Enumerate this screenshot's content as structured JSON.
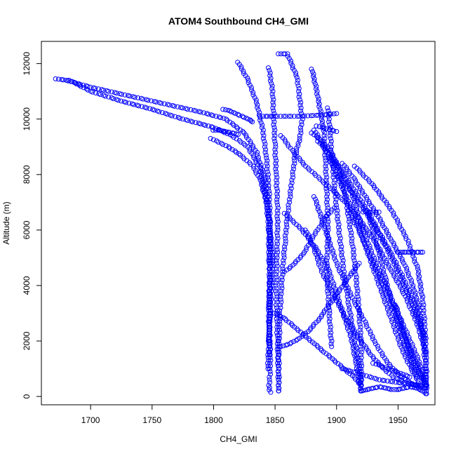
{
  "chart_data": {
    "type": "scatter",
    "title": "ATOM4 Southbound CH4_GMI",
    "xlabel": "CH4_GMI",
    "ylabel": "Altitude (m)",
    "xlim": [
      1660,
      1980
    ],
    "ylim": [
      -300,
      12800
    ],
    "x_ticks": [
      1700,
      1750,
      1800,
      1850,
      1900,
      1950
    ],
    "y_ticks": [
      0,
      2000,
      4000,
      6000,
      8000,
      10000,
      12000
    ],
    "marker": "open-circle",
    "color": "#0000ff",
    "grid": false,
    "legend": "none",
    "series": [
      {
        "x": [
          1672,
          1680,
          1700,
          1730,
          1760,
          1790,
          1810,
          1825,
          1835,
          1842,
          1845,
          1846,
          1846,
          1845,
          1845,
          1846,
          1846,
          1845,
          1846
        ],
        "y": [
          11450,
          11400,
          11150,
          10850,
          10550,
          10250,
          10000,
          9500,
          8800,
          7800,
          6500,
          5500,
          4500,
          3500,
          2500,
          1500,
          800,
          400,
          150
        ]
      },
      {
        "x": [
          1683,
          1700,
          1725,
          1750,
          1775,
          1800,
          1815,
          1828,
          1838,
          1843,
          1845,
          1845,
          1846,
          1846,
          1845
        ],
        "y": [
          11400,
          11000,
          10650,
          10350,
          10000,
          9700,
          9400,
          9000,
          8200,
          7000,
          6000,
          5000,
          4000,
          3000,
          2000
        ]
      },
      {
        "x": [
          1798,
          1812,
          1822,
          1832,
          1838,
          1843,
          1846,
          1848,
          1847,
          1846,
          1845,
          1844
        ],
        "y": [
          9300,
          9000,
          8700,
          8300,
          7800,
          7000,
          6000,
          5000,
          4000,
          3000,
          2000,
          1000
        ]
      },
      {
        "x": [
          1820,
          1828,
          1835,
          1840,
          1843,
          1845,
          1846,
          1846,
          1845,
          1846
        ],
        "y": [
          12050,
          11400,
          10600,
          9600,
          8600,
          7500,
          6200,
          4800,
          3200,
          1500
        ]
      },
      {
        "x": [
          1845,
          1848,
          1849,
          1850,
          1851,
          1852,
          1852,
          1851,
          1852,
          1853
        ],
        "y": [
          11850,
          11000,
          10000,
          9000,
          8000,
          7000,
          6000,
          4000,
          2000,
          200
        ]
      },
      {
        "x": [
          1853,
          1860,
          1868,
          1872,
          1870,
          1866,
          1863,
          1860,
          1858,
          1856,
          1854,
          1853,
          1853
        ],
        "y": [
          12350,
          12350,
          11500,
          10000,
          9300,
          8600,
          7500,
          6500,
          5500,
          4500,
          3000,
          1500,
          200
        ]
      },
      {
        "x": [
          1838,
          1850,
          1870,
          1890,
          1900
        ],
        "y": [
          10100,
          10100,
          10100,
          10150,
          10200
        ]
      },
      {
        "x": [
          1880,
          1884,
          1888,
          1890,
          1891,
          1892,
          1893,
          1892,
          1894,
          1896
        ],
        "y": [
          11800,
          11000,
          10000,
          9500,
          8500,
          7500,
          6000,
          4500,
          3000,
          1800
        ]
      },
      {
        "x": [
          1893,
          1895,
          1896,
          1898,
          1900,
          1903,
          1906,
          1910,
          1914,
          1918,
          1920
        ],
        "y": [
          10400,
          9500,
          8600,
          7800,
          6800,
          5600,
          4500,
          3300,
          2200,
          1200,
          200
        ]
      },
      {
        "x": [
          1880,
          1888,
          1896,
          1902,
          1908,
          1913,
          1917,
          1920,
          1920
        ],
        "y": [
          9500,
          9200,
          8800,
          8200,
          7000,
          5500,
          3800,
          2000,
          200
        ]
      },
      {
        "x": [
          1895,
          1905,
          1912,
          1916,
          1920,
          1925,
          1932,
          1940,
          1948,
          1956,
          1964,
          1970,
          1972
        ],
        "y": [
          8600,
          8000,
          7400,
          6800,
          6200,
          5600,
          4800,
          4000,
          3200,
          2400,
          1600,
          900,
          300
        ]
      },
      {
        "x": [
          1905,
          1915,
          1925,
          1935,
          1945,
          1955,
          1962,
          1967,
          1970,
          1972,
          1973
        ],
        "y": [
          8400,
          7800,
          7100,
          6400,
          5600,
          4800,
          4000,
          3200,
          2300,
          1200,
          100
        ]
      },
      {
        "x": [
          1915,
          1930,
          1945,
          1958,
          1966,
          1970,
          1972,
          1973,
          1973
        ],
        "y": [
          8300,
          7600,
          6700,
          5600,
          4600,
          3500,
          2400,
          1300,
          300
        ]
      },
      {
        "x": [
          1882,
          1890,
          1898,
          1906,
          1914,
          1922,
          1930,
          1938,
          1946,
          1954,
          1962,
          1968
        ],
        "y": [
          9600,
          9000,
          8200,
          7400,
          6600,
          5600,
          4600,
          3600,
          2600,
          1600,
          900,
          400
        ]
      },
      {
        "x": [
          1858,
          1872,
          1884,
          1894,
          1900,
          1906,
          1912,
          1916,
          1920
        ],
        "y": [
          6600,
          6000,
          5300,
          4500,
          3700,
          2900,
          2100,
          1200,
          200
        ]
      },
      {
        "x": [
          1882,
          1888,
          1894,
          1900,
          1908,
          1916,
          1924,
          1932,
          1940,
          1950,
          1960,
          1968
        ],
        "y": [
          7200,
          6400,
          5600,
          4800,
          4000,
          3300,
          2600,
          1900,
          1300,
          800,
          500,
          300
        ]
      },
      {
        "x": [
          1875,
          1882,
          1888,
          1896,
          1904,
          1912,
          1920,
          1928,
          1936,
          1946,
          1956,
          1966
        ],
        "y": [
          6000,
          5300,
          4500,
          3800,
          3100,
          2500,
          2000,
          1500,
          1100,
          700,
          500,
          400
        ]
      },
      {
        "x": [
          1910,
          1918,
          1926,
          1934,
          1942,
          1950,
          1958,
          1966,
          1972
        ],
        "y": [
          6700,
          6000,
          5200,
          4400,
          3500,
          2700,
          1900,
          1100,
          400
        ]
      },
      {
        "x": [
          1925,
          1930,
          1935,
          1940,
          1945,
          1950,
          1955,
          1960,
          1965
        ],
        "y": [
          6700,
          5900,
          5100,
          4200,
          3400,
          2600,
          1900,
          1300,
          700
        ]
      },
      {
        "x": [
          1900,
          1910,
          1920,
          1930,
          1940,
          1950,
          1960,
          1970
        ],
        "y": [
          8000,
          7500,
          6900,
          6200,
          5400,
          4500,
          3500,
          2300
        ]
      },
      {
        "x": [
          1855,
          1865,
          1875,
          1885,
          1895,
          1905,
          1915,
          1925,
          1935,
          1945,
          1955,
          1965,
          1973
        ],
        "y": [
          9400,
          8800,
          8300,
          7900,
          7500,
          7100,
          6600,
          6000,
          5300,
          4500,
          3700,
          2700,
          1500
        ]
      },
      {
        "x": [
          1885,
          1895,
          1905,
          1915,
          1925,
          1935,
          1945,
          1955,
          1965,
          1972
        ],
        "y": [
          9200,
          8700,
          8100,
          7400,
          6700,
          5900,
          5100,
          4200,
          3200,
          2000
        ]
      },
      {
        "x": [
          1850,
          1858,
          1866,
          1874,
          1882,
          1890,
          1898,
          1906,
          1914,
          1920
        ],
        "y": [
          3000,
          2800,
          2500,
          2200,
          1900,
          1600,
          1300,
          1000,
          700,
          400
        ]
      },
      {
        "x": [
          1855,
          1862,
          1870,
          1878,
          1886,
          1894,
          1902,
          1910,
          1918
        ],
        "y": [
          1800,
          1900,
          2100,
          2400,
          2800,
          3300,
          3800,
          4300,
          4800
        ]
      },
      {
        "x": [
          1858,
          1866,
          1874,
          1880,
          1886,
          1892,
          1898
        ],
        "y": [
          4500,
          4800,
          5200,
          5700,
          6100,
          6500,
          6800
        ]
      },
      {
        "x": [
          1930,
          1936,
          1942,
          1948,
          1954,
          1960
        ],
        "y": [
          1200,
          1100,
          1000,
          900,
          800,
          700
        ]
      },
      {
        "x": [
          1905,
          1920,
          1935,
          1950,
          1965,
          1973
        ],
        "y": [
          1000,
          800,
          600,
          500,
          400,
          300
        ]
      },
      {
        "x": [
          1948,
          1950,
          1952,
          1954,
          1956,
          1958,
          1960,
          1963,
          1966,
          1969,
          1972
        ],
        "y": [
          3300,
          3000,
          2700,
          2400,
          2100,
          1800,
          1500,
          1200,
          900,
          700,
          500
        ]
      },
      {
        "x": [
          1808,
          1813,
          1818,
          1823,
          1828,
          1832
        ],
        "y": [
          10350,
          10300,
          10200,
          10100,
          10000,
          9900
        ]
      },
      {
        "x": [
          1800,
          1805,
          1810,
          1815,
          1820
        ],
        "y": [
          9600,
          9600,
          9550,
          9500,
          9450
        ]
      },
      {
        "x": [
          1884,
          1888,
          1892,
          1896,
          1900
        ],
        "y": [
          9750,
          9700,
          9650,
          9600,
          9550
        ]
      },
      {
        "x": [
          1922,
          1926,
          1930,
          1934
        ],
        "y": [
          6650,
          6650,
          6650,
          6650
        ]
      },
      {
        "x": [
          1950,
          1955,
          1960,
          1965,
          1970
        ],
        "y": [
          5200,
          5200,
          5200,
          5200,
          5200
        ]
      },
      {
        "x": [
          1920,
          1925,
          1930,
          1935,
          1940,
          1945,
          1950,
          1955,
          1960,
          1965,
          1970,
          1973
        ],
        "y": [
          200,
          250,
          300,
          350,
          300,
          250,
          250,
          300,
          350,
          300,
          200,
          100
        ]
      }
    ],
    "lines": [
      {
        "x": [
          1948,
          1972
        ],
        "y": [
          3100,
          400
        ]
      }
    ]
  }
}
